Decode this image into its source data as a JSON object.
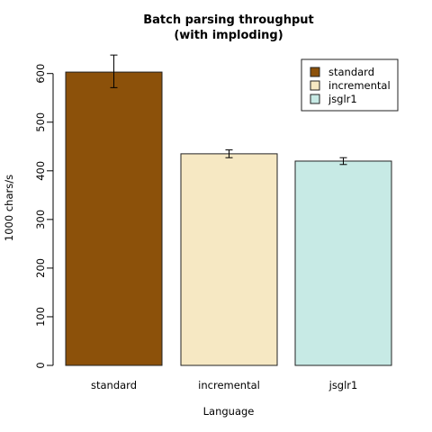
{
  "chart_data": {
    "type": "bar",
    "title_lines": [
      "Batch parsing throughput",
      "(with imploding)"
    ],
    "xlabel": "Language",
    "ylabel": "1000 chars/s",
    "categories": [
      "standard",
      "incremental",
      "jsglr1"
    ],
    "values": [
      603,
      435,
      420
    ],
    "error_low": [
      571,
      427,
      413
    ],
    "error_high": [
      638,
      443,
      427
    ],
    "colors": [
      "#8c510a",
      "#f6e8c3",
      "#c7eae5"
    ],
    "yticks": [
      0,
      100,
      200,
      300,
      400,
      500,
      600
    ],
    "ylim": [
      0,
      640
    ],
    "legend": {
      "placement": "top-right",
      "entries": [
        "standard",
        "incremental",
        "jsglr1"
      ]
    },
    "grid": false
  }
}
